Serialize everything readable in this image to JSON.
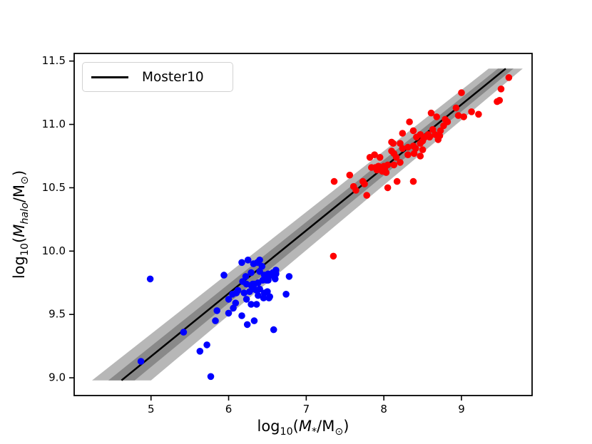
{
  "figure": {
    "background": "#ffffff"
  },
  "legend": {
    "label": "Moster10",
    "line_color": "#000000"
  },
  "axes": {
    "xlabel": {
      "log": "log",
      "logsub": "10",
      "open": "(",
      "m": "M",
      "msub": "*",
      "slash": "/",
      "unit": "M",
      "unitsub": "⊙",
      "close": ")"
    },
    "ylabel": {
      "log": "log",
      "logsub": "10",
      "open": "(",
      "m": "M",
      "msub": "halo",
      "slash": "/",
      "unit": "M",
      "unitsub": "⊙",
      "close": ")"
    }
  },
  "chart_data": {
    "type": "scatter",
    "title": "",
    "xlabel": "log10(M*/Msun)",
    "ylabel": "log10(Mhalo/Msun)",
    "xlim": [
      4.01,
      9.91
    ],
    "ylim": [
      8.86,
      11.56
    ],
    "x_ticks": [
      "5",
      "6",
      "7",
      "8",
      "9"
    ],
    "y_ticks": [
      "9.0",
      "9.5",
      "10.0",
      "10.5",
      "11.0",
      "11.5"
    ],
    "grid": false,
    "legend_entries": [
      {
        "label": "Moster10",
        "type": "line",
        "color": "#000000",
        "position": "upper left"
      }
    ],
    "line": {
      "name": "Moster10",
      "x": [
        4.62,
        9.57
      ],
      "y": [
        8.98,
        11.44
      ],
      "color": "#000000"
    },
    "bands": [
      {
        "name": "outer",
        "color": "#b7b7b7",
        "halfwidth_x_bottom": 0.38,
        "halfwidth_x_top": 0.22
      },
      {
        "name": "inner",
        "color": "#898989",
        "halfwidth_x_bottom": 0.17,
        "halfwidth_x_top": 0.1
      }
    ],
    "series": [
      {
        "name": "blue",
        "color": "#0000ff",
        "marker": "circle",
        "points": [
          [
            4.87,
            9.13
          ],
          [
            4.99,
            9.78
          ],
          [
            5.42,
            9.36
          ],
          [
            5.63,
            9.21
          ],
          [
            5.72,
            9.26
          ],
          [
            5.77,
            9.01
          ],
          [
            5.83,
            9.45
          ],
          [
            5.85,
            9.53
          ],
          [
            5.94,
            9.81
          ],
          [
            6.0,
            9.51
          ],
          [
            6.0,
            9.62
          ],
          [
            6.05,
            9.66
          ],
          [
            6.06,
            9.55
          ],
          [
            6.09,
            9.59
          ],
          [
            6.1,
            9.67
          ],
          [
            6.12,
            9.69
          ],
          [
            6.17,
            9.91
          ],
          [
            6.17,
            9.49
          ],
          [
            6.18,
            9.76
          ],
          [
            6.2,
            9.67
          ],
          [
            6.22,
            9.8
          ],
          [
            6.23,
            9.74
          ],
          [
            6.23,
            9.62
          ],
          [
            6.24,
            9.42
          ],
          [
            6.25,
            9.93
          ],
          [
            6.27,
            9.68
          ],
          [
            6.29,
            9.83
          ],
          [
            6.29,
            9.73
          ],
          [
            6.29,
            9.58
          ],
          [
            6.31,
            9.74
          ],
          [
            6.32,
            9.9
          ],
          [
            6.33,
            9.74
          ],
          [
            6.33,
            9.7
          ],
          [
            6.33,
            9.45
          ],
          [
            6.36,
            9.69
          ],
          [
            6.36,
            9.58
          ],
          [
            6.37,
            9.91
          ],
          [
            6.38,
            9.75
          ],
          [
            6.38,
            9.65
          ],
          [
            6.4,
            9.93
          ],
          [
            6.4,
            9.84
          ],
          [
            6.4,
            9.7
          ],
          [
            6.43,
            9.88
          ],
          [
            6.44,
            9.77
          ],
          [
            6.45,
            9.63
          ],
          [
            6.46,
            9.81
          ],
          [
            6.46,
            9.67
          ],
          [
            6.48,
            9.8
          ],
          [
            6.49,
            9.77
          ],
          [
            6.5,
            9.68
          ],
          [
            6.51,
            9.82
          ],
          [
            6.51,
            9.77
          ],
          [
            6.52,
            9.63
          ],
          [
            6.53,
            9.64
          ],
          [
            6.55,
            9.81
          ],
          [
            6.57,
            9.83
          ],
          [
            6.58,
            9.38
          ],
          [
            6.6,
            9.78
          ],
          [
            6.61,
            9.82
          ],
          [
            6.61,
            9.85
          ],
          [
            6.74,
            9.66
          ],
          [
            6.78,
            9.8
          ]
        ]
      },
      {
        "name": "red",
        "color": "#ff0000",
        "marker": "circle",
        "points": [
          [
            7.35,
            9.96
          ],
          [
            7.36,
            10.55
          ],
          [
            7.56,
            10.6
          ],
          [
            7.61,
            10.51
          ],
          [
            7.64,
            10.48
          ],
          [
            7.73,
            10.55
          ],
          [
            7.75,
            10.53
          ],
          [
            7.78,
            10.44
          ],
          [
            7.82,
            10.74
          ],
          [
            7.84,
            10.66
          ],
          [
            7.88,
            10.76
          ],
          [
            7.89,
            10.66
          ],
          [
            7.91,
            10.64
          ],
          [
            7.93,
            10.67
          ],
          [
            7.95,
            10.74
          ],
          [
            7.97,
            10.66
          ],
          [
            7.98,
            10.63
          ],
          [
            8.0,
            10.67
          ],
          [
            8.01,
            10.65
          ],
          [
            8.03,
            10.62
          ],
          [
            8.05,
            10.68
          ],
          [
            8.05,
            10.5
          ],
          [
            8.1,
            10.86
          ],
          [
            8.1,
            10.79
          ],
          [
            8.12,
            10.85
          ],
          [
            8.13,
            10.77
          ],
          [
            8.13,
            10.68
          ],
          [
            8.16,
            10.74
          ],
          [
            8.17,
            10.55
          ],
          [
            8.21,
            10.85
          ],
          [
            8.21,
            10.7
          ],
          [
            8.24,
            10.93
          ],
          [
            8.24,
            10.81
          ],
          [
            8.31,
            10.82
          ],
          [
            8.31,
            10.76
          ],
          [
            8.33,
            11.02
          ],
          [
            8.38,
            10.95
          ],
          [
            8.38,
            10.83
          ],
          [
            8.38,
            10.55
          ],
          [
            8.39,
            10.77
          ],
          [
            8.41,
            10.81
          ],
          [
            8.42,
            10.9
          ],
          [
            8.47,
            10.92
          ],
          [
            8.47,
            10.85
          ],
          [
            8.47,
            10.75
          ],
          [
            8.5,
            10.87
          ],
          [
            8.5,
            10.8
          ],
          [
            8.53,
            10.9
          ],
          [
            8.57,
            10.92
          ],
          [
            8.59,
            10.9
          ],
          [
            8.61,
            11.09
          ],
          [
            8.63,
            10.96
          ],
          [
            8.66,
            10.92
          ],
          [
            8.68,
            11.06
          ],
          [
            8.7,
            10.88
          ],
          [
            8.72,
            10.91
          ],
          [
            8.73,
            10.95
          ],
          [
            8.77,
            10.99
          ],
          [
            8.79,
            11.04
          ],
          [
            8.82,
            11.02
          ],
          [
            8.93,
            11.13
          ],
          [
            8.96,
            11.07
          ],
          [
            9.0,
            11.25
          ],
          [
            9.03,
            11.06
          ],
          [
            9.13,
            11.1
          ],
          [
            9.22,
            11.08
          ],
          [
            9.46,
            11.18
          ],
          [
            9.49,
            11.19
          ],
          [
            9.51,
            11.28
          ],
          [
            9.61,
            11.37
          ]
        ]
      }
    ]
  }
}
